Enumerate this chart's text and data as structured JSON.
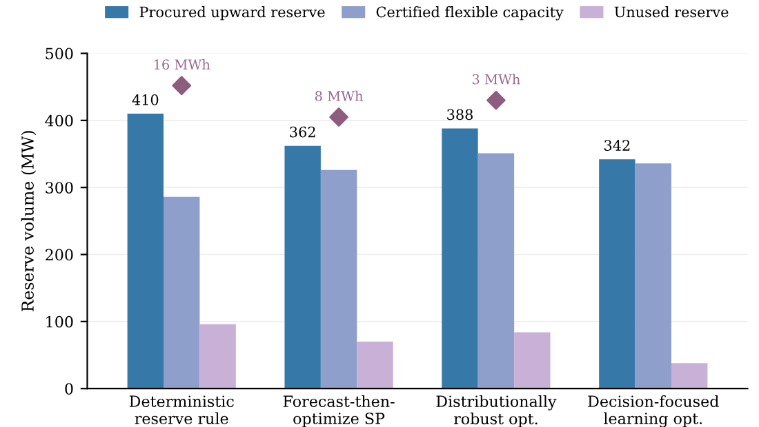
{
  "chart_data": {
    "type": "bar",
    "ylabel": "Reserve volume (MW)",
    "categories": [
      "Deterministic\nreserve rule",
      "Forecast-then-\noptimize SP",
      "Distributionally\nrobust opt.",
      "Decision-focused\nlearning opt."
    ],
    "series": [
      {
        "name": "Procured upward reserve",
        "color": "#3679a8",
        "values": [
          410,
          362,
          388,
          342
        ],
        "value_labels": [
          "410",
          "362",
          "388",
          "342"
        ]
      },
      {
        "name": "Certified flexible capacity",
        "color": "#8e9fcb",
        "values": [
          286,
          326,
          351,
          336
        ]
      },
      {
        "name": "Unused reserve",
        "color": "#c9b0d6",
        "values": [
          96,
          70,
          84,
          38
        ]
      },
      {
        "type": "scatter",
        "marker": "diamond",
        "color": "#8e5c7e",
        "x": [
          "Deterministic\nreserve rule",
          "Forecast-then-\noptimize SP",
          "Distributionally\nrobust opt.",
          "Decision-focused\nlearning opt."
        ],
        "values": [
          452,
          405,
          430,
          null
        ]
      }
    ],
    "annotations": [
      {
        "text": "16 MWh",
        "x": "Deterministic\nreserve rule",
        "y": 452
      },
      {
        "text": "8 MWh",
        "x": "Forecast-then-\noptimize SP",
        "y": 405
      },
      {
        "text": "3 MWh",
        "x": "Distributionally\nrobust opt.",
        "y": 430
      }
    ],
    "ylim": [
      0,
      500
    ],
    "yticks": [
      0,
      100,
      200,
      300,
      400,
      500
    ],
    "grid": "y",
    "legend": "top"
  }
}
